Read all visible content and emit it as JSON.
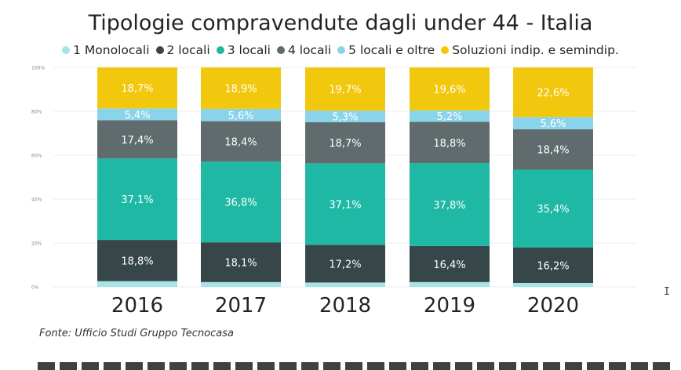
{
  "chart_data": {
    "type": "bar",
    "stacked": true,
    "percent_stacked": true,
    "title": "Tipologie compravendute dagli under 44 - Italia",
    "categories": [
      "2016",
      "2017",
      "2018",
      "2019",
      "2020"
    ],
    "series": [
      {
        "name": "1 Monolocali",
        "color": "#a6e4ea",
        "values": [
          2.6,
          2.2,
          2.0,
          2.2,
          1.8
        ],
        "labels": [
          "",
          "",
          "",
          "",
          ""
        ]
      },
      {
        "name": "2 locali",
        "color": "#374649",
        "values": [
          18.8,
          18.1,
          17.2,
          16.4,
          16.2
        ],
        "labels": [
          "18,8%",
          "18,1%",
          "17,2%",
          "16,4%",
          "16,2%"
        ]
      },
      {
        "name": "3 locali",
        "color": "#1fb8a5",
        "values": [
          37.1,
          36.8,
          37.1,
          37.8,
          35.4
        ],
        "labels": [
          "37,1%",
          "36,8%",
          "37,1%",
          "37,8%",
          "35,4%"
        ]
      },
      {
        "name": "4 locali",
        "color": "#5f6b6d",
        "values": [
          17.4,
          18.4,
          18.7,
          18.8,
          18.4
        ],
        "labels": [
          "17,4%",
          "18,4%",
          "18,7%",
          "18,8%",
          "18,4%"
        ]
      },
      {
        "name": "5 locali e oltre",
        "color": "#8ad4eb",
        "values": [
          5.4,
          5.6,
          5.3,
          5.2,
          5.6
        ],
        "labels": [
          "5,4%",
          "5,6%",
          "5,3%",
          "5,2%",
          "5,6%"
        ]
      },
      {
        "name": "Soluzioni indip. e semindip.",
        "color": "#f2c80f",
        "values": [
          18.7,
          18.9,
          19.7,
          19.6,
          22.6
        ],
        "labels": [
          "18,7%",
          "18,9%",
          "19,7%",
          "19,6%",
          "22,6%"
        ]
      }
    ],
    "y_ticks": [
      "0%",
      "20%",
      "40%",
      "60%",
      "80%",
      "100%"
    ],
    "ylim": [
      0,
      100
    ],
    "grid": true,
    "legend_position": "top",
    "dark_series_label_color": "#ffffff"
  },
  "source_note": "Fonte: Ufficio Studi Gruppo Tecnocasa",
  "cursor_icon": "text-cursor-icon"
}
